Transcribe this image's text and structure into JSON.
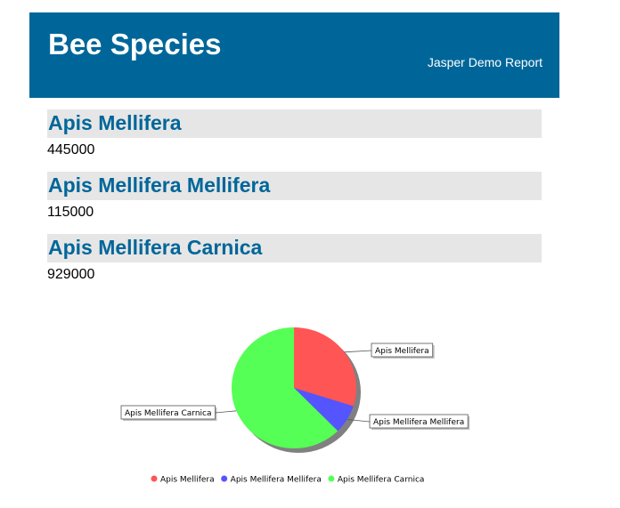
{
  "header": {
    "title": "Bee Species",
    "subtitle": "Jasper Demo Report"
  },
  "groups": [
    {
      "name": "Apis Mellifera",
      "count": "445000"
    },
    {
      "name": "Apis Mellifera Mellifera",
      "count": "115000"
    },
    {
      "name": "Apis Mellifera Carnica",
      "count": "929000"
    }
  ],
  "chart_data": {
    "type": "pie",
    "title": "",
    "categories": [
      "Apis Mellifera",
      "Apis Mellifera Mellifera",
      "Apis Mellifera Carnica"
    ],
    "values": [
      445000,
      115000,
      929000
    ],
    "colors": [
      "#ff5555",
      "#5555ff",
      "#55ff55"
    ],
    "legend": "bottom",
    "shadow": true
  }
}
